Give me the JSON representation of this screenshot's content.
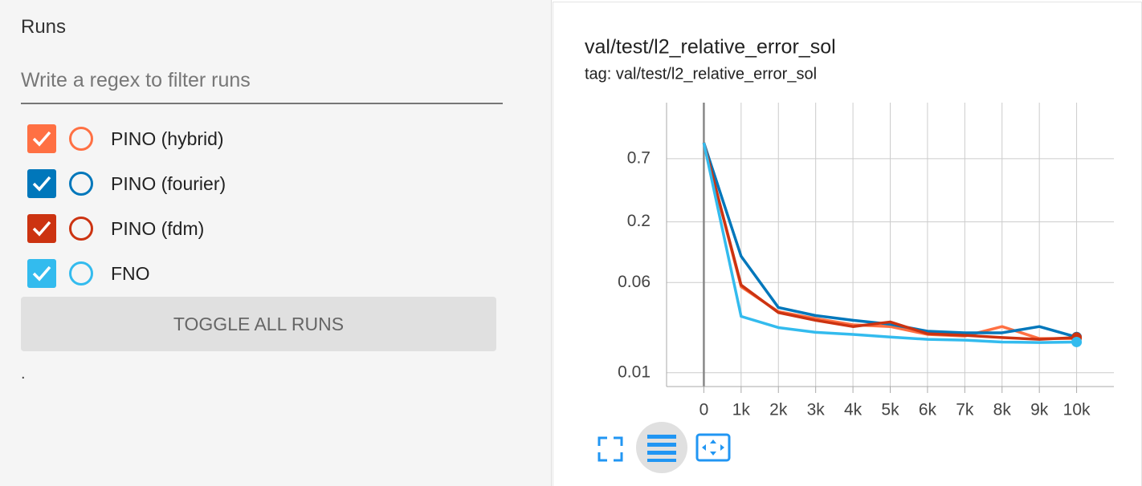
{
  "sidebar": {
    "title": "Runs",
    "filter_placeholder": "Write a regex to filter runs",
    "toggle_button": "TOGGLE ALL RUNS",
    "footnote": "."
  },
  "chart_data": {
    "type": "line",
    "title": "val/test/l2_relative_error_sol",
    "subtitle": "tag: val/test/l2_relative_error_sol",
    "x": [
      0,
      1000,
      2000,
      3000,
      4000,
      5000,
      6000,
      7000,
      8000,
      9000,
      10000
    ],
    "series": [
      {
        "name": "PINO (hybrid)",
        "color": "#ff7043",
        "values": [
          0.96,
          0.0551,
          0.0336,
          0.0293,
          0.0259,
          0.025,
          0.0214,
          0.0207,
          0.025,
          0.0197,
          0.0197
        ]
      },
      {
        "name": "PINO (fourier)",
        "color": "#0077bb",
        "values": [
          0.96,
          0.101,
          0.0365,
          0.0311,
          0.0283,
          0.0262,
          0.0228,
          0.0221,
          0.0221,
          0.025,
          0.0203
        ]
      },
      {
        "name": "PINO (fdm)",
        "color": "#cc3311",
        "values": [
          0.96,
          0.057,
          0.033,
          0.0283,
          0.025,
          0.0274,
          0.0217,
          0.021,
          0.0201,
          0.0194,
          0.0201
        ]
      },
      {
        "name": "FNO",
        "color": "#33bbee",
        "values": [
          0.96,
          0.0306,
          0.0245,
          0.0223,
          0.0214,
          0.0203,
          0.0194,
          0.0191,
          0.0184,
          0.0182,
          0.0184
        ]
      }
    ],
    "xlim": [
      -1000,
      11000
    ],
    "xticks": [
      0,
      {
        "value": 1000,
        "label": "1k"
      },
      {
        "value": 2000,
        "label": "2k"
      },
      {
        "value": 3000,
        "label": "3k"
      },
      {
        "value": 4000,
        "label": "4k"
      },
      {
        "value": 5000,
        "label": "5k"
      },
      {
        "value": 6000,
        "label": "6k"
      },
      {
        "value": 7000,
        "label": "7k"
      },
      {
        "value": 8000,
        "label": "8k"
      },
      {
        "value": 9000,
        "label": "9k"
      },
      {
        "value": 10000,
        "label": "10k"
      }
    ],
    "ylim": [
      0.0076,
      2.13
    ],
    "yticks": [
      0.01,
      0.06,
      0.2,
      0.7
    ],
    "log_scale": true,
    "grid": true
  }
}
